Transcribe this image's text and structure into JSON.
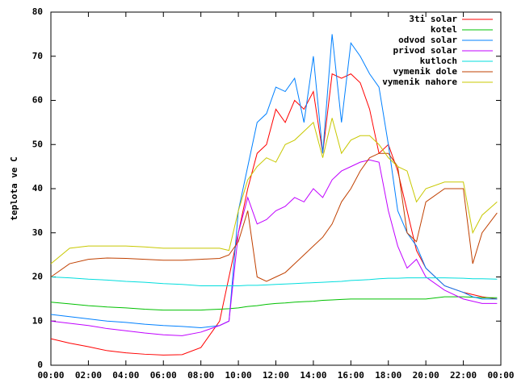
{
  "chart_data": {
    "type": "line",
    "ylabel": "teplota ve C",
    "x": [
      0,
      1,
      2,
      3,
      4,
      5,
      6,
      7,
      8,
      9,
      9.5,
      10,
      10.5,
      11,
      11.5,
      12,
      12.5,
      13,
      13.5,
      14,
      14.5,
      15,
      15.5,
      16,
      16.5,
      17,
      17.5,
      18,
      18.5,
      19,
      19.5,
      20,
      21,
      22,
      22.5,
      23,
      23.8
    ],
    "xlim": [
      0,
      24
    ],
    "xticks": [
      {
        "value": 0,
        "label": "00:00"
      },
      {
        "value": 2,
        "label": "02:00"
      },
      {
        "value": 4,
        "label": "04:00"
      },
      {
        "value": 6,
        "label": "06:00"
      },
      {
        "value": 8,
        "label": "08:00"
      },
      {
        "value": 10,
        "label": "10:00"
      },
      {
        "value": 12,
        "label": "12:00"
      },
      {
        "value": 14,
        "label": "14:00"
      },
      {
        "value": 16,
        "label": "16:00"
      },
      {
        "value": 18,
        "label": "18:00"
      },
      {
        "value": 20,
        "label": "20:00"
      },
      {
        "value": 22,
        "label": "22:00"
      },
      {
        "value": 24,
        "label": "00:00"
      }
    ],
    "ylim": [
      0,
      80
    ],
    "yticks": [
      0,
      10,
      20,
      30,
      40,
      50,
      60,
      70,
      80
    ],
    "grid": false,
    "legend": "top-right",
    "series": [
      {
        "name": "3ti solar",
        "color": "#ff0000",
        "values": [
          6,
          5,
          4.2,
          3.3,
          2.8,
          2.5,
          2.3,
          2.4,
          4,
          10,
          20,
          30,
          40,
          48,
          50,
          58,
          55,
          60,
          58,
          62,
          48,
          66,
          65,
          66,
          64,
          58,
          48,
          50,
          44,
          35,
          26,
          22,
          18,
          16.5,
          16,
          15.5,
          15
        ]
      },
      {
        "name": "kotel",
        "color": "#00c000",
        "values": [
          14.3,
          13.9,
          13.5,
          13.2,
          13,
          12.7,
          12.5,
          12.5,
          12.5,
          12.7,
          12.8,
          13,
          13.3,
          13.5,
          13.8,
          14,
          14.1,
          14.3,
          14.4,
          14.5,
          14.7,
          14.8,
          14.9,
          15,
          15,
          15,
          15,
          15,
          15,
          15,
          15,
          15,
          15.5,
          15.5,
          15.4,
          15.3,
          15.3
        ]
      },
      {
        "name": "odvod solar",
        "color": "#0080ff",
        "values": [
          11.5,
          11,
          10.5,
          10,
          9.7,
          9.3,
          9,
          8.8,
          8.5,
          9,
          10,
          35,
          45,
          55,
          57,
          63,
          62,
          65,
          55,
          70,
          48,
          75,
          55,
          73,
          70,
          66,
          63,
          50,
          35,
          30,
          27,
          22,
          18,
          16.5,
          15.5,
          15,
          15
        ]
      },
      {
        "name": "privod solar",
        "color": "#c000ff",
        "values": [
          10,
          9.5,
          9,
          8.3,
          7.8,
          7.3,
          6.9,
          6.7,
          7.5,
          9,
          10,
          30,
          38,
          32,
          33,
          35,
          36,
          38,
          37,
          40,
          38,
          42,
          44,
          45,
          46,
          46.5,
          46,
          35,
          27,
          22,
          24,
          20,
          17,
          15,
          14.5,
          14,
          14
        ]
      },
      {
        "name": "kutloch",
        "color": "#00dddd",
        "values": [
          20,
          19.8,
          19.5,
          19.3,
          19,
          18.8,
          18.5,
          18.3,
          18,
          18,
          18,
          18,
          18.1,
          18.1,
          18.2,
          18.3,
          18.4,
          18.5,
          18.6,
          18.7,
          18.8,
          18.9,
          19,
          19.2,
          19.3,
          19.4,
          19.6,
          19.7,
          19.7,
          19.8,
          19.8,
          19.8,
          19.8,
          19.7,
          19.6,
          19.6,
          19.5
        ]
      },
      {
        "name": "vymenik dole",
        "color": "#c04000",
        "values": [
          20,
          23,
          24,
          24.3,
          24.2,
          24,
          23.8,
          23.8,
          24,
          24.2,
          25,
          28,
          35,
          20,
          19,
          20,
          21,
          23,
          25,
          27,
          29,
          32,
          37,
          40,
          44,
          47,
          48,
          48,
          45,
          30,
          28,
          37,
          40,
          40,
          23,
          30,
          34.5
        ]
      },
      {
        "name": "vymenik nahore",
        "color": "#c8c800",
        "values": [
          23,
          26.5,
          27,
          27,
          27,
          26.8,
          26.5,
          26.5,
          26.5,
          26.5,
          26,
          35,
          42,
          45,
          47,
          46,
          50,
          51,
          53,
          55,
          47,
          56,
          48,
          51,
          52,
          52,
          50,
          47,
          45,
          44,
          37,
          40,
          41.5,
          41.5,
          30,
          34,
          37
        ]
      }
    ]
  }
}
